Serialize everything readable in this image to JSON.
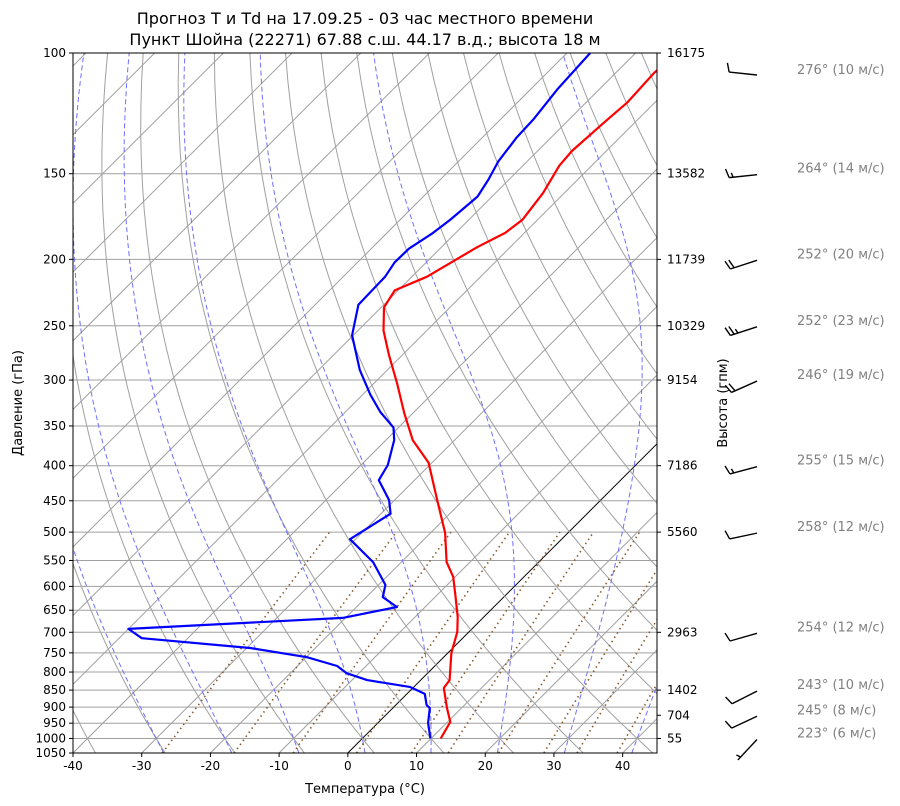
{
  "chart_data": {
    "type": "line",
    "title_line1": "Прогноз T и Td на 17.09.25 - 03 час местного времени",
    "title_line2": "Пункт Шойна (22271) 67.88 с.ш. 44.17 в.д.; высота 18 м",
    "xlabel": "Температура (°C)",
    "ylabel": "Давление (гПа)",
    "ylabel_right": "Высота (гпм)",
    "xlim": [
      -40,
      45
    ],
    "ylim": [
      1050,
      100
    ],
    "yscale": "log",
    "skew_deg": 45,
    "x_ticks": [
      "-40",
      "-30",
      "-20",
      "-10",
      "0",
      "10",
      "20",
      "30",
      "40"
    ],
    "y_ticks": [
      "100",
      "150",
      "200",
      "250",
      "300",
      "350",
      "400",
      "450",
      "500",
      "550",
      "600",
      "650",
      "700",
      "750",
      "800",
      "850",
      "900",
      "950",
      "1000",
      "1050"
    ],
    "height_ticks": [
      {
        "p": 100,
        "label": "16175"
      },
      {
        "p": 150,
        "label": "13582"
      },
      {
        "p": 200,
        "label": "11739"
      },
      {
        "p": 250,
        "label": "10329"
      },
      {
        "p": 300,
        "label": "9154"
      },
      {
        "p": 400,
        "label": "7186"
      },
      {
        "p": 500,
        "label": "5560"
      },
      {
        "p": 700,
        "label": "2963"
      },
      {
        "p": 850,
        "label": "1402"
      },
      {
        "p": 925,
        "label": "704"
      },
      {
        "p": 1000,
        "label": "55"
      }
    ],
    "winds": [
      {
        "p": 100,
        "dir": 276,
        "speed": 10,
        "label": "276° (10 м/с)"
      },
      {
        "p": 150,
        "dir": 264,
        "speed": 14,
        "label": "264° (14 м/с)"
      },
      {
        "p": 200,
        "dir": 252,
        "speed": 20,
        "label": "252° (20 м/с)"
      },
      {
        "p": 250,
        "dir": 252,
        "speed": 23,
        "label": "252° (23 м/с)"
      },
      {
        "p": 300,
        "dir": 246,
        "speed": 19,
        "label": "246° (19 м/с)"
      },
      {
        "p": 400,
        "dir": 255,
        "speed": 15,
        "label": "255° (15 м/с)"
      },
      {
        "p": 500,
        "dir": 258,
        "speed": 12,
        "label": "258° (12 м/с)"
      },
      {
        "p": 700,
        "dir": 254,
        "speed": 12,
        "label": "254° (12 м/с)"
      },
      {
        "p": 850,
        "dir": 243,
        "speed": 10,
        "label": "243° (10 м/с)"
      },
      {
        "p": 925,
        "dir": 245,
        "speed": 8,
        "label": "245° (8 м/с)"
      },
      {
        "p": 1000,
        "dir": 223,
        "speed": 6,
        "label": "223° (6 м/с)"
      }
    ],
    "series": [
      {
        "name": "Temperature",
        "color": "#ff0000",
        "points": [
          [
            1000,
            11.4
          ],
          [
            946,
            10.4
          ],
          [
            903,
            7.9
          ],
          [
            844,
            4.5
          ],
          [
            822,
            4.2
          ],
          [
            750,
            0.5
          ],
          [
            699,
            -1.7
          ],
          [
            665,
            -3.8
          ],
          [
            622,
            -7.0
          ],
          [
            581,
            -10.3
          ],
          [
            553,
            -13.4
          ],
          [
            501,
            -17.9
          ],
          [
            449,
            -23.8
          ],
          [
            396,
            -30.5
          ],
          [
            367,
            -36.1
          ],
          [
            335,
            -41.3
          ],
          [
            303,
            -46.7
          ],
          [
            276,
            -51.9
          ],
          [
            254,
            -56.3
          ],
          [
            235,
            -59.6
          ],
          [
            222,
            -60.5
          ],
          [
            212,
            -57.8
          ],
          [
            192,
            -54.8
          ],
          [
            183,
            -52.8
          ],
          [
            175,
            -52.2
          ],
          [
            160,
            -53.1
          ],
          [
            146,
            -54.7
          ],
          [
            139,
            -55.0
          ],
          [
            125,
            -54.4
          ],
          [
            118,
            -54.0
          ],
          [
            107,
            -54.4
          ],
          [
            100,
            -54.0
          ]
        ]
      },
      {
        "name": "Dewpoint",
        "color": "#0000ff",
        "points": [
          [
            1000,
            9.9
          ],
          [
            949,
            7.3
          ],
          [
            903,
            5.4
          ],
          [
            894,
            4.5
          ],
          [
            861,
            2.6
          ],
          [
            841,
            -0.6
          ],
          [
            822,
            -7.8
          ],
          [
            803,
            -11.8
          ],
          [
            784,
            -14.2
          ],
          [
            761,
            -19.9
          ],
          [
            738,
            -29.5
          ],
          [
            714,
            -46.7
          ],
          [
            692,
            -50.0
          ],
          [
            667,
            -20.4
          ],
          [
            643,
            -14.1
          ],
          [
            622,
            -17.6
          ],
          [
            597,
            -19.0
          ],
          [
            553,
            -24.1
          ],
          [
            512,
            -30.8
          ],
          [
            470,
            -28.6
          ],
          [
            449,
            -30.8
          ],
          [
            420,
            -35.2
          ],
          [
            399,
            -36.1
          ],
          [
            367,
            -38.8
          ],
          [
            352,
            -40.7
          ],
          [
            334,
            -44.9
          ],
          [
            315,
            -48.9
          ],
          [
            290,
            -54.0
          ],
          [
            258,
            -60.2
          ],
          [
            233,
            -63.7
          ],
          [
            212,
            -63.9
          ],
          [
            202,
            -64.6
          ],
          [
            193,
            -64.5
          ],
          [
            183,
            -63.3
          ],
          [
            175,
            -62.7
          ],
          [
            162,
            -62.1
          ],
          [
            153,
            -63.0
          ],
          [
            144,
            -64.2
          ],
          [
            133,
            -65.0
          ],
          [
            125,
            -65.2
          ],
          [
            113,
            -66.1
          ],
          [
            100,
            -66.6
          ]
        ]
      }
    ],
    "reference_lines": {
      "zero_isotherm_color": "#000000",
      "isotherm_color": "#a0a0a0",
      "dry_adiabat_color": "#a0a0a0",
      "moist_adiabat_color": "#7070ff",
      "mixing_ratio_color": "#8b5a2b"
    }
  }
}
